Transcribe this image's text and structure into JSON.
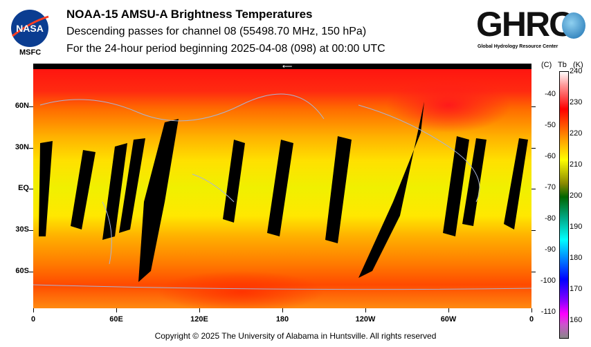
{
  "header": {
    "title": "NOAA-15 AMSU-A Brightness Temperatures",
    "subtitle": "Descending passes for channel 08 (55498.70 MHz, 150 hPa)",
    "period": "For the 24-hour period beginning 2025-04-08 (098) at 00:00 UTC"
  },
  "logos": {
    "nasa": "NASA",
    "msfc": "MSFC",
    "ghrc": "GHRC",
    "ghrc_sub": "Global Hydrology Resource Center"
  },
  "footer": "Copyright © 2025 The University of Alabama in Huntsville.  All rights reserved",
  "chart_data": {
    "type": "heatmap",
    "title": "NOAA-15 AMSU-A Brightness Temperatures",
    "x_ticks": [
      "0",
      "60E",
      "120E",
      "180",
      "120W",
      "60W",
      "0"
    ],
    "y_ticks": [
      "60N",
      "30N",
      "EQ",
      "30S",
      "60S"
    ],
    "colorbar": {
      "label_c": "(C)",
      "label_tb": "Tb",
      "label_k": "(K)",
      "kelvin_ticks": [
        "240",
        "230",
        "220",
        "210",
        "200",
        "190",
        "180",
        "170",
        "160"
      ],
      "celsius_ticks": [
        "-40",
        "-50",
        "-60",
        "-70",
        "-80",
        "-90",
        "-100",
        "-110"
      ],
      "range_k": [
        155,
        240
      ],
      "colors": [
        "#888888",
        "#cc55cc",
        "#ff00ff",
        "#8800ff",
        "#0000ff",
        "#0088ff",
        "#00ffff",
        "#00aa88",
        "#006600",
        "#888800",
        "#ffff00",
        "#ff9900",
        "#ff0000",
        "#ffffff"
      ]
    },
    "zonal_tb_k": {
      "90N": 230,
      "60N": 228,
      "30N": 219,
      "EQ": 215,
      "30S": 219,
      "60S": 224,
      "90S": 222
    },
    "missing_data_color": "#000000"
  }
}
